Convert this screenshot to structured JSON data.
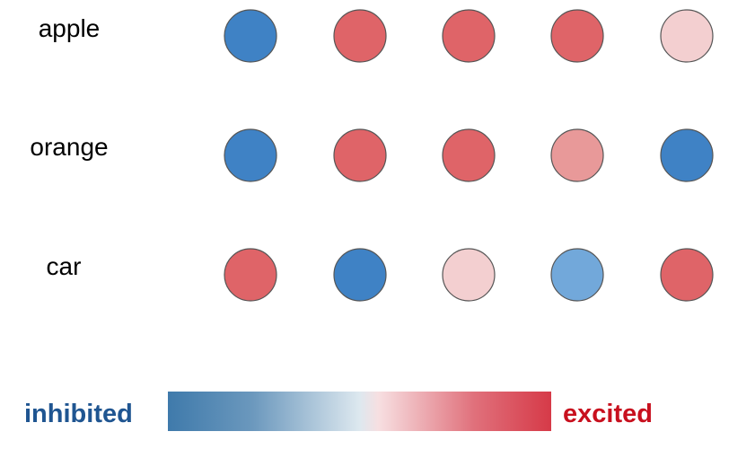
{
  "rows": [
    {
      "label": "apple",
      "activations": [
        -1.0,
        0.8,
        0.8,
        0.8,
        0.25
      ]
    },
    {
      "label": "orange",
      "activations": [
        -1.0,
        0.8,
        0.8,
        0.55,
        -1.0
      ]
    },
    {
      "label": "car",
      "activations": [
        0.8,
        -1.0,
        0.25,
        -0.7,
        0.8
      ]
    }
  ],
  "legend": {
    "low_label": "inhibited",
    "high_label": "excited",
    "low_color": "#1f5591",
    "high_color": "#c8101e",
    "gradient_stops": [
      "#3f7aab",
      "#6b98bd",
      "#dde8ef",
      "#f7dfe1",
      "#e0707b",
      "#d63a48"
    ]
  },
  "colors": {
    "strong_inhibited": "#3f82c5",
    "weak_inhibited": "#72a8da",
    "strong_excited": "#df6468",
    "medium_excited": "#e89999",
    "weak_excited": "#f3cfd0"
  }
}
